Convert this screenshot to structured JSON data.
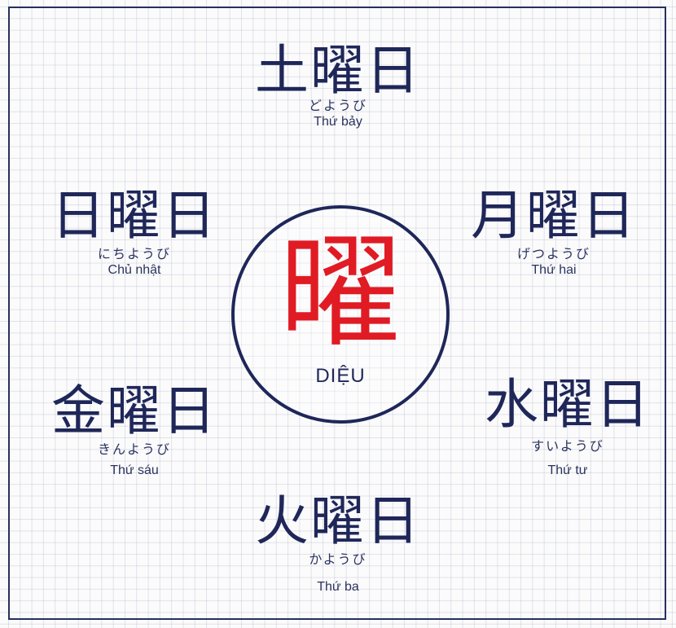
{
  "center": {
    "kanji": "曜",
    "label": "DIỆU"
  },
  "days": {
    "saturday": {
      "kanji": "土曜日",
      "kana": "どようび",
      "vietnamese": "Thứ bảy"
    },
    "sunday": {
      "kanji": "日曜日",
      "kana": "にちようび",
      "vietnamese": "Chủ nhật"
    },
    "monday": {
      "kanji": "月曜日",
      "kana": "げつようび",
      "vietnamese": "Thứ hai"
    },
    "friday": {
      "kanji": "金曜日",
      "kana": "きんようび",
      "vietnamese": "Thứ sáu"
    },
    "wednesday": {
      "kanji": "水曜日",
      "kana": "すいようび",
      "vietnamese": "Thứ tư"
    },
    "tuesday": {
      "kanji": "火曜日",
      "kana": "かようび",
      "vietnamese": "Thứ ba"
    }
  },
  "colors": {
    "navy": "#1f2759",
    "red": "#e01b24",
    "grid": "#aaaebe"
  }
}
